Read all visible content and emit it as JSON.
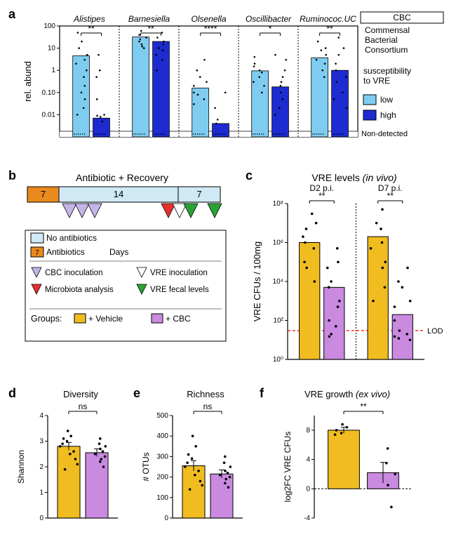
{
  "colors": {
    "low": "#7ecdf0",
    "high": "#1d2bd1",
    "vehicle": "#f0bc20",
    "cbc": "#c98ae0",
    "antibiotic_block": "#e88a1e",
    "recovery_block": "#cfe9f5",
    "inoc_cbc": "#c4b5e8",
    "inoc_vre": "#ffffff",
    "microbiota": "#e8302d",
    "vre_fecal": "#2aa336",
    "lod": "#ff0000",
    "axis": "#000000"
  },
  "panel_a": {
    "label": "a",
    "cbc_box_top": "CBC",
    "cbc_box_text": [
      "Commensal",
      "Bacterial",
      "Consortium"
    ],
    "ylabel": "rel. abund",
    "legend_title": "susceptibility\nto VRE",
    "legend_items": [
      {
        "label": "low",
        "color": "low"
      },
      {
        "label": "high",
        "color": "high"
      }
    ],
    "nondetected": "Non-detected",
    "yticks": [
      "0.01",
      "0.10",
      "1",
      "10",
      "100"
    ],
    "ylim_log": [
      0.001,
      100
    ],
    "genera": [
      {
        "name": "Alistipes",
        "sig": "**",
        "low": 4.5,
        "high": 0.007,
        "low_scatter": [
          50,
          20,
          10,
          5,
          3,
          2,
          1,
          0.5,
          0.2,
          0.1,
          0.05,
          0.02,
          0.01
        ],
        "high_scatter": [
          5,
          1,
          0.5,
          0.05,
          0.01,
          0.009,
          0.008,
          0.005
        ]
      },
      {
        "name": "Barnesiella",
        "sig": "**",
        "low": 32,
        "high": 20,
        "low_scatter": [
          60,
          40,
          30,
          25,
          20,
          15,
          12,
          10
        ],
        "high_scatter": [
          50,
          30,
          20,
          15,
          10,
          8,
          5,
          3,
          1
        ]
      },
      {
        "name": "Olsenella",
        "sig": "****",
        "low": 0.16,
        "high": 0.004,
        "low_scatter": [
          3,
          1,
          0.5,
          0.3,
          0.2,
          0.1,
          0.08,
          0.05,
          0.03
        ],
        "high_scatter": [
          0.1,
          0.02,
          0.006,
          0.004
        ]
      },
      {
        "name": "Oscillibacter",
        "sig": "*",
        "low": 0.95,
        "high": 0.18,
        "low_scatter": [
          4,
          2,
          1.5,
          1,
          0.8,
          0.5,
          0.3,
          0.2,
          0.1
        ],
        "high_scatter": [
          5,
          3,
          1,
          0.5,
          0.3,
          0.2,
          0.1,
          0.05,
          0.02,
          0.01
        ]
      },
      {
        "name": "Ruminococ.UC",
        "sig": "**",
        "low": 3.7,
        "high": 1.0,
        "low_scatter": [
          20,
          10,
          8,
          5,
          3,
          2,
          1,
          0.5
        ],
        "high_scatter": [
          30,
          10,
          5,
          2,
          1,
          0.5,
          0.3,
          0.1,
          0.05,
          0.02
        ]
      }
    ]
  },
  "panel_b": {
    "label": "b",
    "title": "Antibiotic + Recovery",
    "blocks": [
      {
        "days": "7",
        "color": "antibiotic_block"
      },
      {
        "days": "14",
        "color": "recovery_block"
      },
      {
        "days": "7",
        "color": "recovery_block"
      }
    ],
    "legend": [
      {
        "shape": "square",
        "color": "recovery_block",
        "label": "No antibiotics"
      },
      {
        "shape": "square",
        "color": "antibiotic_block",
        "badge": "7",
        "label": "Antibiotics"
      },
      {
        "text_only": "Days"
      },
      {
        "shape": "triangle",
        "color": "inoc_cbc",
        "label": "CBC inoculation"
      },
      {
        "shape": "triangle",
        "color": "inoc_vre",
        "label": "VRE inoculation"
      },
      {
        "shape": "triangle",
        "color": "microbiota",
        "label": "Microbiota analysis"
      },
      {
        "shape": "triangle",
        "color": "vre_fecal",
        "label": "VRE fecal levels"
      }
    ],
    "groups_label": "Groups:",
    "groups": [
      {
        "color": "vehicle",
        "label": "+ Vehicle"
      },
      {
        "color": "cbc",
        "label": "+ CBC"
      }
    ],
    "cbc_triangles": 3,
    "end_triangles": [
      "microbiota",
      "inoc_vre",
      "vre_fecal"
    ],
    "final_triangle": "vre_fecal"
  },
  "panel_c": {
    "label": "c",
    "title": "VRE levels",
    "title_note": "(in vivo)",
    "ylabel": "VRE CFUs / 100mg",
    "lod_label": "LOD",
    "lod_value": 30,
    "yticks": [
      "10⁰",
      "10²",
      "10⁴",
      "10⁶",
      "10⁸"
    ],
    "ylim_log": [
      1,
      100000000.0
    ],
    "timepoints": [
      {
        "label": "D2 p.i.",
        "sig": "**",
        "vehicle": 1000000.0,
        "cbc": 5000.0,
        "vehicle_scatter": [
          30000000.0,
          10000000.0,
          5000000.0,
          2000000.0,
          1000000.0,
          500000.0,
          100000.0,
          50000.0,
          10000.0
        ],
        "cbc_scatter": [
          500000.0,
          100000.0,
          50000.0,
          10000.0,
          5000.0,
          1000.0,
          500.0,
          100.0,
          50,
          20,
          15
        ]
      },
      {
        "label": "D7 p.i.",
        "sig": "**",
        "vehicle": 2000000.0,
        "cbc": 200.0,
        "vehicle_scatter": [
          50000000.0,
          10000000.0,
          5000000.0,
          1000000.0,
          500000.0,
          100000.0,
          50000.0,
          5000.0,
          1000.0
        ],
        "cbc_scatter": [
          50000.0,
          10000.0,
          5000.0,
          1000.0,
          500.0,
          100.0,
          30,
          20,
          15,
          12,
          10
        ]
      }
    ]
  },
  "panel_d": {
    "label": "d",
    "title": "Diversity",
    "ylabel": "Shannon",
    "sig": "ns",
    "ylim": [
      0,
      4
    ],
    "yticks": [
      0,
      1,
      2,
      3,
      4
    ],
    "vehicle": 2.8,
    "cbc": 2.55,
    "vehicle_err": 0.15,
    "cbc_err": 0.15,
    "vehicle_scatter": [
      3.4,
      3.2,
      3.1,
      3.0,
      2.9,
      2.8,
      2.6,
      2.5,
      2.3,
      2.1,
      1.9
    ],
    "cbc_scatter": [
      3.1,
      2.9,
      2.8,
      2.7,
      2.6,
      2.5,
      2.4,
      2.3,
      2.2,
      2.0
    ]
  },
  "panel_e": {
    "label": "e",
    "title": "Richness",
    "ylabel": "# OTUs",
    "sig": "ns",
    "ylim": [
      0,
      500
    ],
    "yticks": [
      0,
      100,
      200,
      300,
      400,
      500
    ],
    "vehicle": 255,
    "cbc": 215,
    "vehicle_err": 25,
    "cbc_err": 20,
    "vehicle_scatter": [
      400,
      350,
      310,
      290,
      270,
      250,
      230,
      210,
      180,
      160,
      140
    ],
    "cbc_scatter": [
      300,
      270,
      250,
      230,
      220,
      210,
      200,
      190,
      170,
      150
    ]
  },
  "panel_f": {
    "label": "f",
    "title": "VRE growth",
    "title_note": "(ex vivo)",
    "ylabel": "log2FC VRE CFUs",
    "sig": "**",
    "ylim": [
      -4,
      10
    ],
    "yticks": [
      -4,
      0,
      4,
      8
    ],
    "vehicle": 8.0,
    "cbc": 2.2,
    "vehicle_err": 0.4,
    "cbc_err": 1.4,
    "vehicle_scatter": [
      8.8,
      8.4,
      8.0,
      7.6,
      7.4
    ],
    "cbc_scatter": [
      5.5,
      3.5,
      2.0,
      0.5,
      -2.5
    ]
  }
}
